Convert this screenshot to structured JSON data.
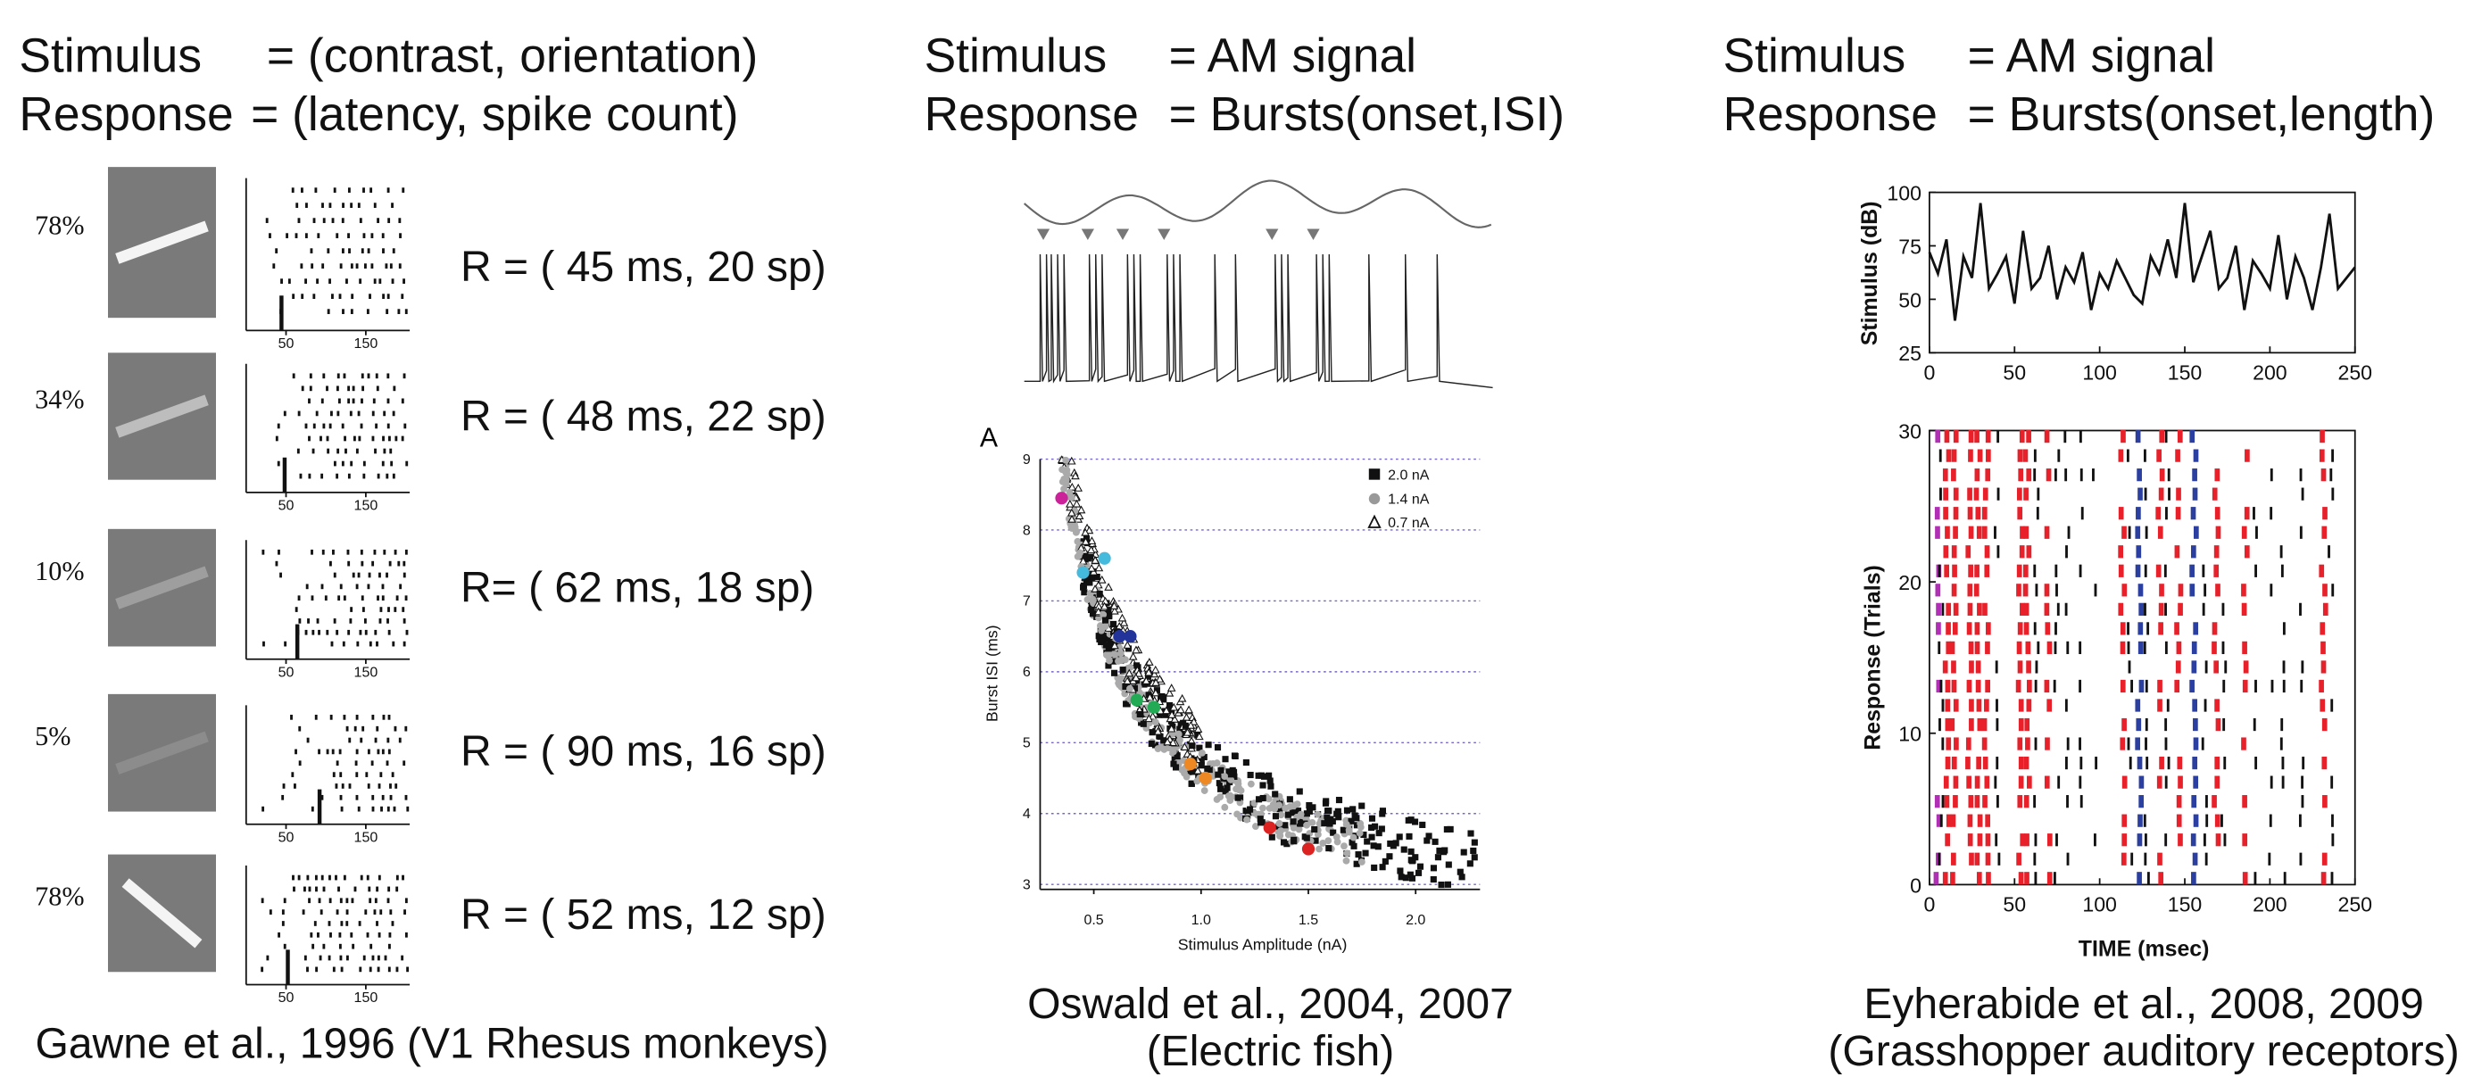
{
  "panels": [
    {
      "header": {
        "stimulus_label": "Stimulus",
        "stimulus": "= (contrast, orientation)",
        "response_label": "Response",
        "response": "= (latency, spike count)"
      },
      "rows": [
        {
          "contrast": "78%",
          "response": "R = ( 45 ms, 20 sp)"
        },
        {
          "contrast": "34%",
          "response": "R = ( 48 ms, 22 sp)"
        },
        {
          "contrast": "10%",
          "response": "R= ( 62 ms, 18 sp)"
        },
        {
          "contrast": "5%",
          "response": "R = ( 90 ms, 16 sp)"
        },
        {
          "contrast": "78%",
          "response": "R = ( 52 ms, 12 sp)"
        }
      ],
      "raster_axis": {
        "xlim": [
          0,
          205
        ],
        "xticks": [
          50,
          150
        ]
      },
      "caption": "Gawne et al., 1996 (V1 Rhesus monkeys)"
    },
    {
      "header": {
        "stimulus_label": "Stimulus",
        "stimulus": "= AM signal",
        "response_label": "Response",
        "response": "= Bursts(onset,ISI)"
      },
      "chart": {
        "type": "scatter",
        "panel_label": "A",
        "x_label": "Stimulus Amplitude (nA)",
        "y_label": "Burst ISI (ms)",
        "xlim": [
          0.25,
          2.3
        ],
        "xticks": [
          0.5,
          {
            "value": 1,
            "label": "1.0"
          },
          1.5,
          {
            "value": 2,
            "label": "2.0"
          }
        ],
        "ylim": [
          2.93,
          9.0
        ],
        "yticks": [
          3,
          4,
          5,
          6,
          7,
          8,
          9
        ],
        "legend": [
          {
            "name": "2.0 nA",
            "color": "#111111"
          },
          {
            "name": "1.4 nA",
            "color": "#999999"
          },
          {
            "name": "0.7 nA",
            "color": "#111111"
          }
        ],
        "highlighted": {
          "x": [
            0.35,
            0.45,
            0.55,
            0.62,
            0.67,
            0.7,
            0.78,
            0.95,
            1.02,
            1.32,
            1.5
          ],
          "y": [
            8.45,
            7.4,
            7.6,
            6.5,
            6.5,
            5.6,
            5.5,
            4.7,
            4.5,
            3.8,
            3.5
          ],
          "colors": [
            "#cc2299",
            "#44bbdd",
            "#44bbdd",
            "#223399",
            "#223399",
            "#22aa55",
            "#22aa55",
            "#ee8822",
            "#ee8822",
            "#dd2222",
            "#dd2222"
          ]
        }
      },
      "caption": [
        "Oswald et al., 2004, 2007",
        "(Electric fish)"
      ]
    },
    {
      "header": {
        "stimulus_label": "Stimulus",
        "stimulus": "= AM signal",
        "response_label": "Response",
        "response": "= Bursts(onset,length)"
      },
      "stimulus_chart": {
        "type": "line",
        "y_label": "Stimulus (dB)",
        "xlim": [
          0,
          250
        ],
        "xticks": [
          0,
          50,
          100,
          150,
          200,
          250
        ],
        "ylim": [
          25,
          100
        ],
        "yticks": [
          25,
          50,
          75,
          100
        ],
        "x": [
          0,
          5,
          10,
          15,
          20,
          25,
          30,
          35,
          40,
          45,
          50,
          55,
          60,
          65,
          70,
          75,
          80,
          85,
          90,
          95,
          100,
          105,
          110,
          115,
          120,
          125,
          130,
          135,
          140,
          145,
          150,
          155,
          160,
          165,
          170,
          175,
          180,
          185,
          190,
          195,
          200,
          205,
          210,
          215,
          220,
          225,
          230,
          235,
          240,
          245,
          250
        ],
        "values": [
          72,
          62,
          78,
          40,
          70,
          60,
          95,
          55,
          62,
          70,
          48,
          82,
          55,
          60,
          75,
          50,
          65,
          58,
          72,
          45,
          62,
          55,
          68,
          60,
          52,
          48,
          70,
          62,
          78,
          60,
          95,
          58,
          70,
          82,
          55,
          60,
          75,
          45,
          68,
          62,
          55,
          80,
          50,
          70,
          60,
          45,
          65,
          90,
          55,
          60,
          65
        ]
      },
      "raster_chart": {
        "type": "raster",
        "y_label": "Response (Trials)",
        "x_label": "TIME (msec)",
        "xlim": [
          0,
          250
        ],
        "xticks": [
          0,
          50,
          100,
          150,
          200,
          250
        ],
        "ylim": [
          0,
          30
        ],
        "yticks": [
          0,
          10,
          20,
          30
        ]
      },
      "caption": [
        "Eyherabide et al., 2008, 2009",
        "(Grasshopper auditory receptors)"
      ]
    }
  ]
}
